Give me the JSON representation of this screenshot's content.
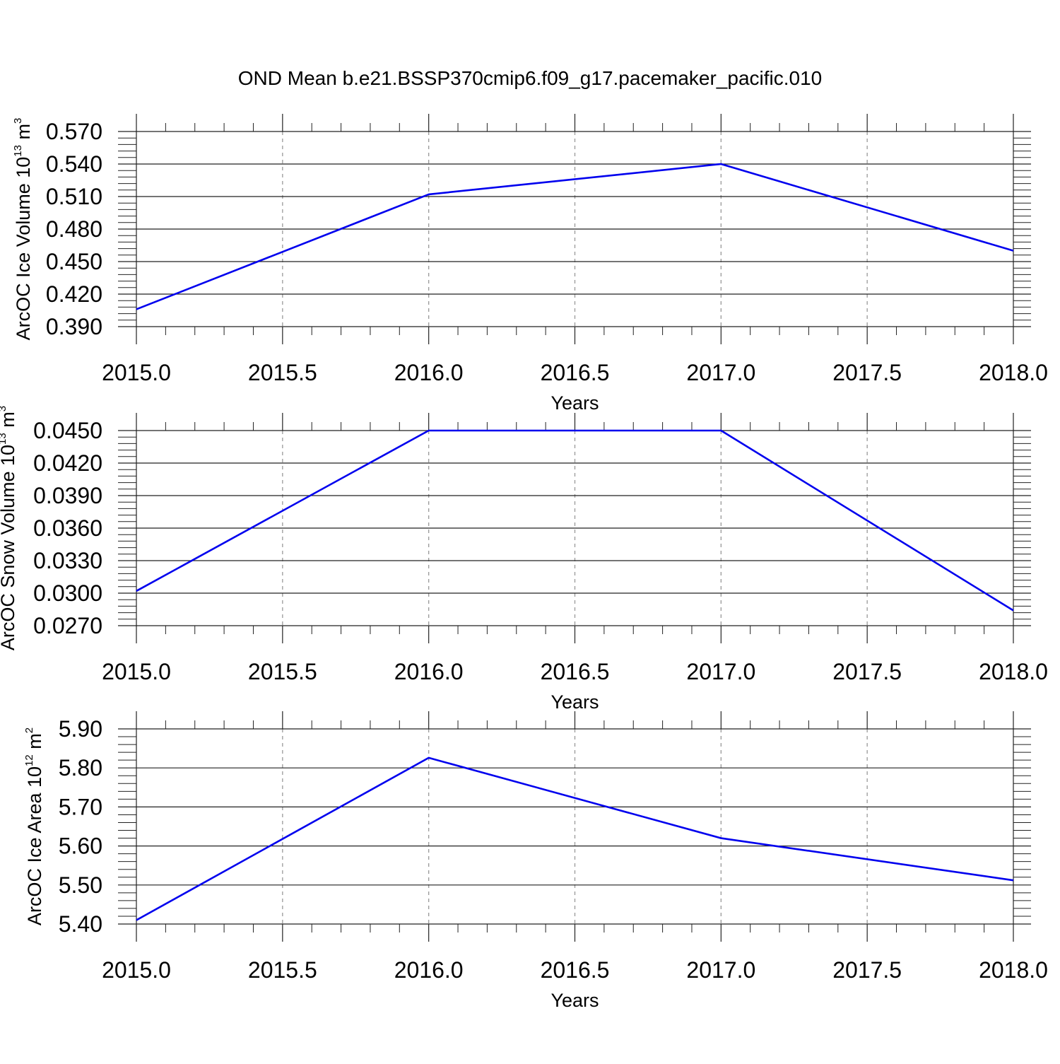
{
  "title": "OND Mean b.e21.BSSP370cmip6.f09_g17.pacemaker_pacific.010",
  "chart_data": [
    {
      "type": "line",
      "x": [
        2015,
        2016,
        2017,
        2018
      ],
      "series": [
        {
          "values": [
            0.406,
            0.512,
            0.54,
            0.46
          ],
          "color": "#0000ee"
        }
      ],
      "xlim": [
        2015.0,
        2018.0
      ],
      "ylim": [
        0.39,
        0.57
      ],
      "xticks": [
        "2015.0",
        "2015.5",
        "2016.0",
        "2016.5",
        "2017.0",
        "2017.5",
        "2018.0"
      ],
      "yticks": [
        "0.390",
        "0.420",
        "0.450",
        "0.480",
        "0.510",
        "0.540",
        "0.570"
      ],
      "xlabel": "Years",
      "ylabel": {
        "text": "ArcOC Ice Volume 10",
        "exp": "13",
        "unit": " m",
        "unit_exp": "3"
      },
      "grid": "vertical dashed"
    },
    {
      "type": "line",
      "x": [
        2015,
        2016,
        2017,
        2018
      ],
      "series": [
        {
          "values": [
            0.0302,
            0.045,
            0.045,
            0.0284
          ],
          "color": "#0000ee"
        }
      ],
      "xlim": [
        2015.0,
        2018.0
      ],
      "ylim": [
        0.027,
        0.045
      ],
      "xticks": [
        "2015.0",
        "2015.5",
        "2016.0",
        "2016.5",
        "2017.0",
        "2017.5",
        "2018.0"
      ],
      "yticks": [
        "0.0270",
        "0.0300",
        "0.0330",
        "0.0360",
        "0.0390",
        "0.0420",
        "0.0450"
      ],
      "xlabel": "Years",
      "ylabel": {
        "text": "ArcOC Snow Volume 10",
        "exp": "13",
        "unit": " m",
        "unit_exp": "3"
      },
      "grid": "vertical dashed"
    },
    {
      "type": "line",
      "x": [
        2015,
        2016,
        2017,
        2018
      ],
      "series": [
        {
          "values": [
            5.41,
            5.826,
            5.62,
            5.512
          ],
          "color": "#0000ee"
        }
      ],
      "xlim": [
        2015.0,
        2018.0
      ],
      "ylim": [
        5.4,
        5.9
      ],
      "xticks": [
        "2015.0",
        "2015.5",
        "2016.0",
        "2016.5",
        "2017.0",
        "2017.5",
        "2018.0"
      ],
      "yticks": [
        "5.40",
        "5.50",
        "5.60",
        "5.70",
        "5.80",
        "5.90"
      ],
      "xlabel": "Years",
      "ylabel": {
        "text": "ArcOC Ice Area 10",
        "exp": "12",
        "unit": " m",
        "unit_exp": "2"
      },
      "grid": "vertical dashed"
    }
  ]
}
